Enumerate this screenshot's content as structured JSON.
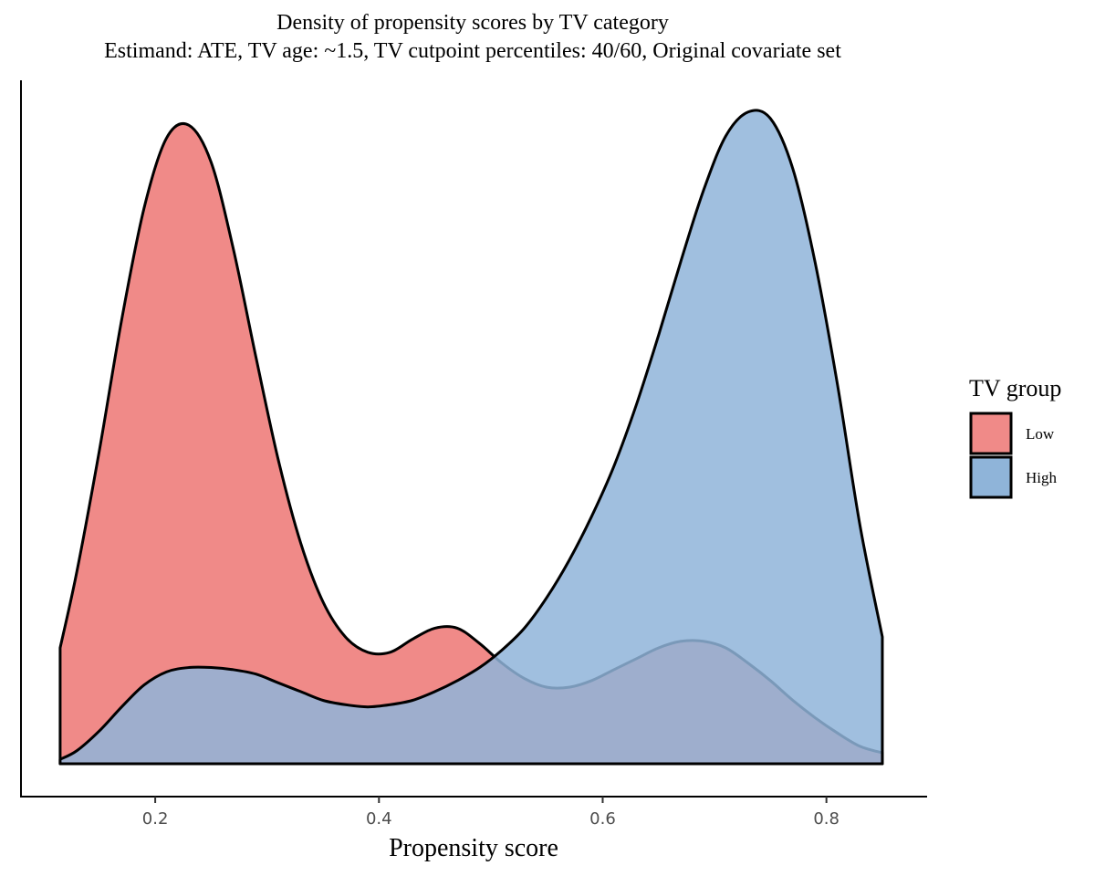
{
  "chart_data": {
    "type": "area",
    "title": "Density of propensity scores by TV category",
    "subtitle": "Estimand: ATE, TV age: ~1.5, TV cutpoint percentiles: 40/60, Original covariate set",
    "xlabel": "Propensity score",
    "ylabel": "",
    "xlim": [
      0.08,
      0.89
    ],
    "ylim": [
      0,
      3.0
    ],
    "x_ticks": [
      0.2,
      0.4,
      0.6,
      0.8
    ],
    "x_tick_labels": [
      "0.2",
      "0.4",
      "0.6",
      "0.8"
    ],
    "y_axis_labels_shown": false,
    "grid": false,
    "legend": {
      "title": "TV group",
      "placement": "right"
    },
    "series": [
      {
        "name": "Low",
        "color": "#F08A88",
        "x": [
          0.115,
          0.13,
          0.15,
          0.17,
          0.19,
          0.21,
          0.23,
          0.25,
          0.27,
          0.29,
          0.31,
          0.33,
          0.35,
          0.37,
          0.39,
          0.41,
          0.43,
          0.45,
          0.47,
          0.49,
          0.51,
          0.53,
          0.55,
          0.57,
          0.59,
          0.61,
          0.63,
          0.65,
          0.67,
          0.69,
          0.71,
          0.73,
          0.75,
          0.77,
          0.79,
          0.81,
          0.83,
          0.85
        ],
        "y": [
          0.53,
          0.88,
          1.43,
          2.03,
          2.54,
          2.86,
          2.92,
          2.75,
          2.35,
          1.86,
          1.39,
          1.01,
          0.74,
          0.58,
          0.51,
          0.51,
          0.57,
          0.62,
          0.62,
          0.55,
          0.46,
          0.39,
          0.35,
          0.35,
          0.38,
          0.43,
          0.48,
          0.53,
          0.56,
          0.56,
          0.53,
          0.46,
          0.38,
          0.29,
          0.21,
          0.14,
          0.08,
          0.05
        ]
      },
      {
        "name": "High",
        "color": "#8FB4D9",
        "x": [
          0.115,
          0.13,
          0.15,
          0.17,
          0.19,
          0.21,
          0.23,
          0.25,
          0.27,
          0.29,
          0.31,
          0.33,
          0.35,
          0.37,
          0.39,
          0.41,
          0.43,
          0.45,
          0.47,
          0.49,
          0.51,
          0.53,
          0.55,
          0.57,
          0.59,
          0.61,
          0.63,
          0.65,
          0.67,
          0.69,
          0.71,
          0.73,
          0.75,
          0.77,
          0.79,
          0.81,
          0.83,
          0.85
        ],
        "y": [
          0.02,
          0.06,
          0.15,
          0.26,
          0.36,
          0.42,
          0.44,
          0.44,
          0.43,
          0.41,
          0.37,
          0.33,
          0.29,
          0.27,
          0.26,
          0.27,
          0.29,
          0.33,
          0.38,
          0.44,
          0.52,
          0.62,
          0.76,
          0.93,
          1.13,
          1.36,
          1.64,
          1.96,
          2.3,
          2.62,
          2.87,
          2.98,
          2.95,
          2.72,
          2.29,
          1.73,
          1.09,
          0.58
        ]
      }
    ]
  }
}
